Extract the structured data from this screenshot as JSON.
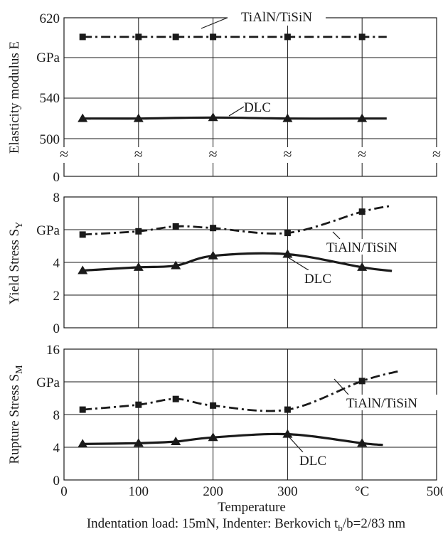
{
  "chart_data": [
    {
      "type": "line",
      "ylabel": "Elasticity modulus E",
      "unit_label": "GPa",
      "ylim": [
        0,
        620
      ],
      "axis_break": true,
      "y_ticks": [
        "0",
        "500",
        "540",
        "620"
      ],
      "series": [
        {
          "name": "TiAlN/TiSiN",
          "style": "dash-dot",
          "marker": "square",
          "x": [
            25,
            100,
            150,
            200,
            300,
            400
          ],
          "y": [
            601,
            601,
            601,
            601,
            601,
            601
          ]
        },
        {
          "name": "DLC",
          "style": "solid",
          "marker": "triangle",
          "x": [
            25,
            100,
            200,
            300,
            400
          ],
          "y": [
            520,
            520,
            521,
            520,
            520
          ]
        }
      ]
    },
    {
      "type": "line",
      "ylabel": "Yield Stress S",
      "ylabel_sub": "Y",
      "unit_label": "GPa",
      "ylim": [
        0,
        8
      ],
      "y_ticks": [
        "0",
        "2",
        "4",
        "8"
      ],
      "series": [
        {
          "name": "TiAlN/TiSiN",
          "style": "dash-dot",
          "marker": "square",
          "x": [
            25,
            100,
            150,
            200,
            300,
            400
          ],
          "y": [
            5.7,
            5.9,
            6.2,
            6.1,
            5.8,
            7.1
          ]
        },
        {
          "name": "DLC",
          "style": "solid",
          "marker": "triangle",
          "x": [
            25,
            100,
            150,
            200,
            300,
            400
          ],
          "y": [
            3.5,
            3.7,
            3.8,
            4.4,
            4.5,
            3.7
          ]
        }
      ]
    },
    {
      "type": "line",
      "ylabel": "Rupture Stress S",
      "ylabel_sub": "M",
      "unit_label": "GPa",
      "ylim": [
        0,
        16
      ],
      "y_ticks": [
        "0",
        "4",
        "8",
        "16"
      ],
      "x_ticks": [
        "0",
        "100",
        "200",
        "300",
        "°C",
        "500"
      ],
      "xlabel": "Temperature",
      "series": [
        {
          "name": "TiAlN/TiSiN",
          "style": "dash-dot",
          "marker": "square",
          "x": [
            25,
            100,
            150,
            200,
            300,
            400
          ],
          "y": [
            8.6,
            9.2,
            9.9,
            9.1,
            8.6,
            12.1
          ]
        },
        {
          "name": "DLC",
          "style": "solid",
          "marker": "triangle",
          "x": [
            25,
            100,
            150,
            200,
            300,
            400
          ],
          "y": [
            4.4,
            4.5,
            4.7,
            5.2,
            5.6,
            4.5
          ]
        }
      ]
    }
  ],
  "footnote": {
    "prefix": "Indentation load: 15mN, Indenter: Berkovich t",
    "sub": "b",
    "suffix": "/b=2/83 nm"
  }
}
